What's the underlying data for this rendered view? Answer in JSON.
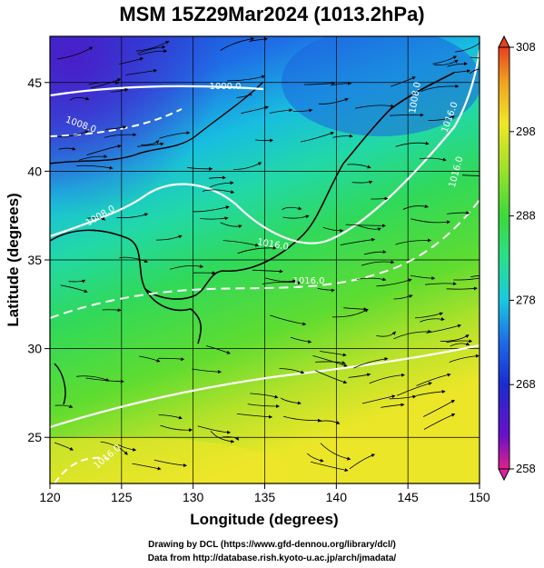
{
  "title": "MSM 15Z29Mar2024 (1013.2hPa)",
  "x_axis": {
    "label": "Longitude (degrees)",
    "range": [
      120,
      150
    ],
    "ticks": [
      "120",
      "125",
      "130",
      "135",
      "140",
      "145",
      "150"
    ]
  },
  "y_axis": {
    "label": "Latitude  (degrees)",
    "range": [
      22.4,
      47.6
    ],
    "ticks": [
      "25",
      "30",
      "35",
      "40",
      "45"
    ]
  },
  "colorbar": {
    "range": [
      258,
      308
    ],
    "ticks": [
      "308",
      "298",
      "288",
      "278",
      "268",
      "258"
    ],
    "colors": [
      "#e0208c",
      "#6a10c8",
      "#1a2bd0",
      "#1e6ae8",
      "#19c8e0",
      "#2adf8a",
      "#3cd93a",
      "#a4e22a",
      "#f0e628",
      "#f0a020",
      "#e84020"
    ]
  },
  "contour_labels": [
    "1000.0",
    "1008.0",
    "1008.0",
    "1016.0",
    "1016.0",
    "1016.0",
    "1016.0",
    "1008.0",
    "1016.0"
  ],
  "credits": {
    "line1": "Drawing by DCL (https://www.gfd-dennou.org/library/dcl/)",
    "line2": "Data from http://database.rish.kyoto-u.ac.jp/arch/jmadata/"
  }
}
